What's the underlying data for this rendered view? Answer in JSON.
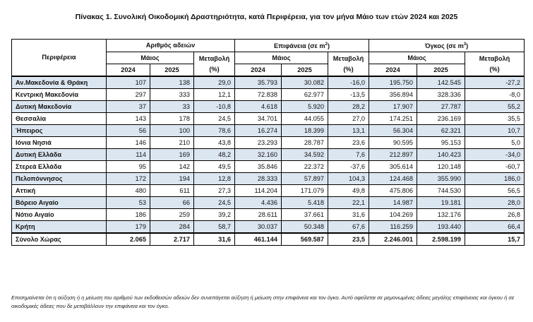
{
  "title": "Πίνακας 1. Συνολική Οικοδομική Δραστηριότητα, κατά  Περιφέρεια, για τον μήνα Μάιο των ετών 2024 και 2025",
  "headers": {
    "region": "Περιφέρεια",
    "groups": [
      "Αριθμός αδειών",
      "Επιφάνεια (σε m",
      "Όγκος (σε m"
    ],
    "group_sup": [
      "",
      "2",
      "3"
    ],
    "group_suffix": [
      "",
      ")",
      ")"
    ],
    "month": "Μάιος",
    "change": "Μεταβολή",
    "change_unit": "(%)",
    "year1": "2024",
    "year2": "2025"
  },
  "rows": [
    {
      "region": "Αν.Μακεδονία & Θράκη",
      "p24": "107",
      "p25": "138",
      "pch": "29,0",
      "s24": "35.793",
      "s25": "30.082",
      "sch": "-16,0",
      "v24": "195.750",
      "v25": "142.545",
      "vch": "-27,2"
    },
    {
      "region": "Κεντρική Μακεδονία",
      "p24": "297",
      "p25": "333",
      "pch": "12,1",
      "s24": "72.838",
      "s25": "62.977",
      "sch": "-13,5",
      "v24": "356.894",
      "v25": "328.336",
      "vch": "-8,0"
    },
    {
      "region": "Δυτική Μακεδονία",
      "p24": "37",
      "p25": "33",
      "pch": "-10,8",
      "s24": "4.618",
      "s25": "5.920",
      "sch": "28,2",
      "v24": "17.907",
      "v25": "27.787",
      "vch": "55,2"
    },
    {
      "region": "Θεσσαλία",
      "p24": "143",
      "p25": "178",
      "pch": "24,5",
      "s24": "34.701",
      "s25": "44.055",
      "sch": "27,0",
      "v24": "174.251",
      "v25": "236.169",
      "vch": "35,5"
    },
    {
      "region": "Ήπειρος",
      "p24": "56",
      "p25": "100",
      "pch": "78,6",
      "s24": "16.274",
      "s25": "18.399",
      "sch": "13,1",
      "v24": "56.304",
      "v25": "62.321",
      "vch": "10,7"
    },
    {
      "region": "Ιόνια Νησιά",
      "p24": "146",
      "p25": "210",
      "pch": "43,8",
      "s24": "23.293",
      "s25": "28.787",
      "sch": "23,6",
      "v24": "90.595",
      "v25": "95.153",
      "vch": "5,0"
    },
    {
      "region": "Δυτική Ελλάδα",
      "p24": "114",
      "p25": "169",
      "pch": "48,2",
      "s24": "32.160",
      "s25": "34.592",
      "sch": "7,6",
      "v24": "212.897",
      "v25": "140.423",
      "vch": "-34,0"
    },
    {
      "region": "Στερεά Ελλάδα",
      "p24": "95",
      "p25": "142",
      "pch": "49,5",
      "s24": "35.846",
      "s25": "22.372",
      "sch": "-37,6",
      "v24": "305.614",
      "v25": "120.148",
      "vch": "-60,7"
    },
    {
      "region": "Πελοπόννησος",
      "p24": "172",
      "p25": "194",
      "pch": "12,8",
      "s24": "28.333",
      "s25": "57.897",
      "sch": "104,3",
      "v24": "124.468",
      "v25": "355.990",
      "vch": "186,0"
    },
    {
      "region": "Αττική",
      "p24": "480",
      "p25": "611",
      "pch": "27,3",
      "s24": "114.204",
      "s25": "171.079",
      "sch": "49,8",
      "v24": "475.806",
      "v25": "744.530",
      "vch": "56,5"
    },
    {
      "region": "Βόρειο Αιγαίο",
      "p24": "53",
      "p25": "66",
      "pch": "24,5",
      "s24": "4.436",
      "s25": "5.418",
      "sch": "22,1",
      "v24": "14.987",
      "v25": "19.181",
      "vch": "28,0"
    },
    {
      "region": "Νότιο Αιγαίο",
      "p24": "186",
      "p25": "259",
      "pch": "39,2",
      "s24": "28.611",
      "s25": "37.661",
      "sch": "31,6",
      "v24": "104.269",
      "v25": "132.176",
      "vch": "26,8"
    },
    {
      "region": "Κρήτη",
      "p24": "179",
      "p25": "284",
      "pch": "58,7",
      "s24": "30.037",
      "s25": "50.348",
      "sch": "67,6",
      "v24": "116.259",
      "v25": "193.440",
      "vch": "66,4"
    }
  ],
  "total": {
    "region": "Σύνολο Χώρας",
    "p24": "2.065",
    "p25": "2.717",
    "pch": "31,6",
    "s24": "461.144",
    "s25": "569.587",
    "sch": "23,5",
    "v24": "2.246.001",
    "v25": "2.598.199",
    "vch": "15,7"
  },
  "note": "Επισημαίνεται ότι η αύξηση ή η μείωση του αριθμού των εκδοθεισών αδειών δεν συνεπάγεται αύξηση ή μείωση στην επιφάνεια και τον όγκο. Αυτό οφείλεται σε μεμονωμένες άδειες μεγάλης επιφάνειας και όγκου ή σε οικοδομικές άδειες που δε μεταβάλλουν την επιφάνεια και τον όγκο.",
  "colors": {
    "shade": "#dce6f1"
  }
}
